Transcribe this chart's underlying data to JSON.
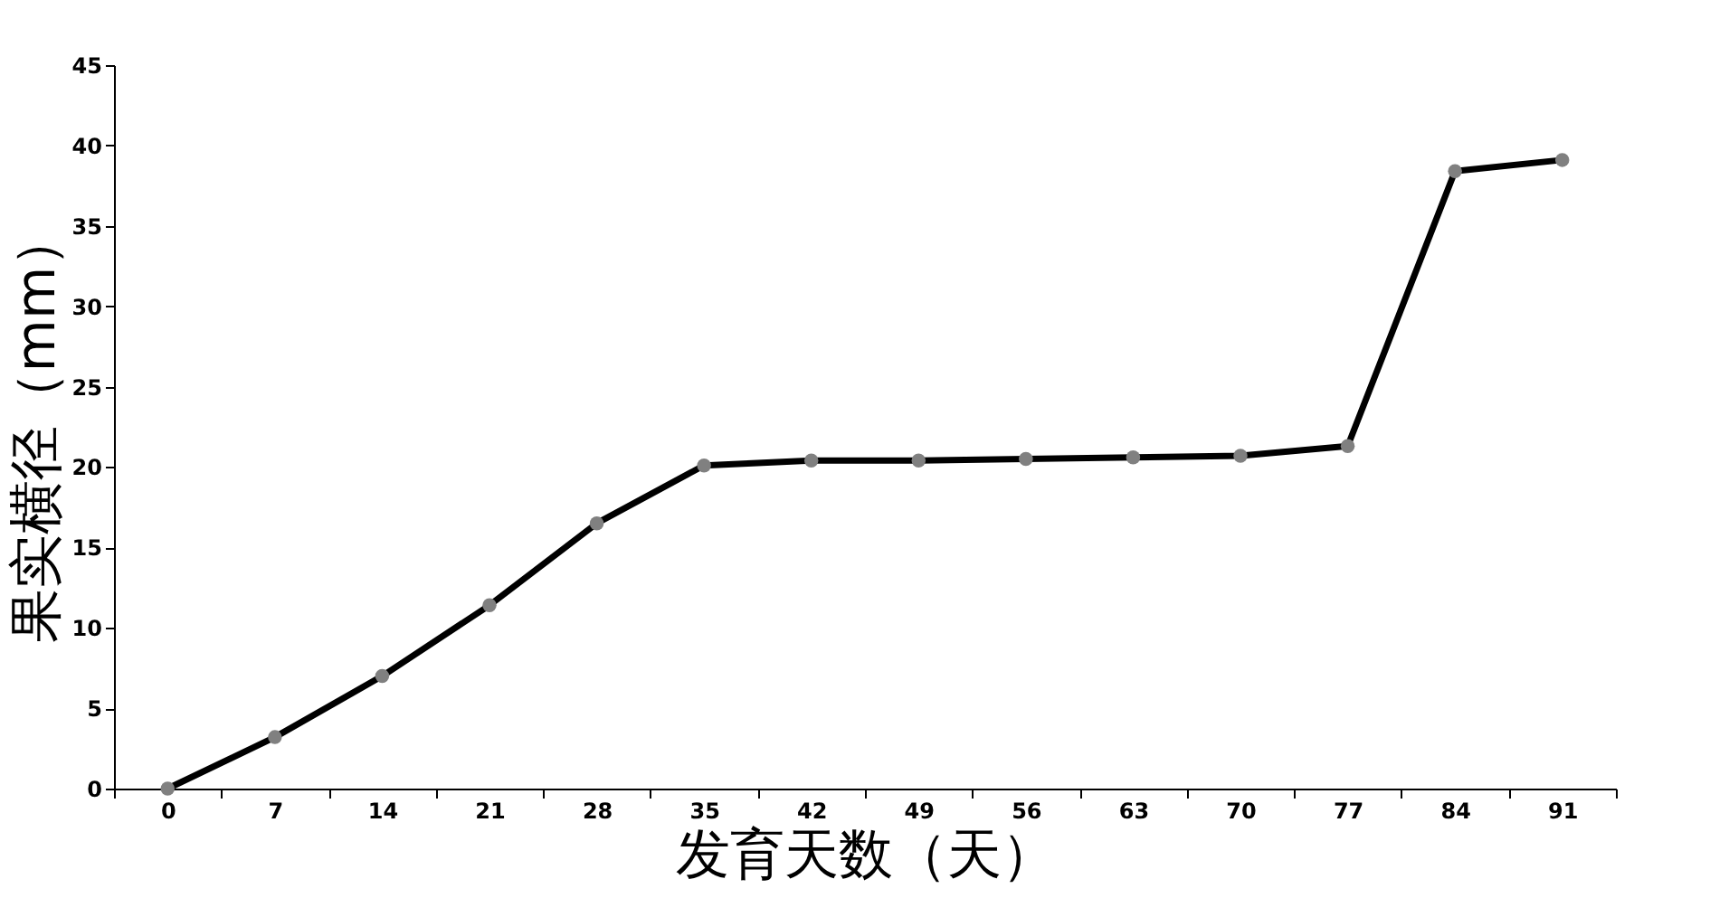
{
  "chart_data": {
    "type": "line",
    "xlabel": "发育天数（天）",
    "ylabel": "果实横径（mm）",
    "categories": [
      "0",
      "7",
      "14",
      "21",
      "28",
      "35",
      "42",
      "49",
      "56",
      "63",
      "70",
      "77",
      "84",
      "91"
    ],
    "series": [
      {
        "color": "#000000",
        "values": [
          0,
          3.2,
          7.0,
          11.4,
          16.5,
          20.1,
          20.4,
          20.4,
          20.5,
          20.6,
          20.7,
          21.3,
          38.4,
          39.1
        ]
      }
    ],
    "ylim": [
      0,
      45
    ],
    "yticks": [
      0,
      5,
      10,
      15,
      20,
      25,
      30,
      35,
      40,
      45
    ],
    "grid": false,
    "marker": "circle",
    "line_style": "solid"
  }
}
